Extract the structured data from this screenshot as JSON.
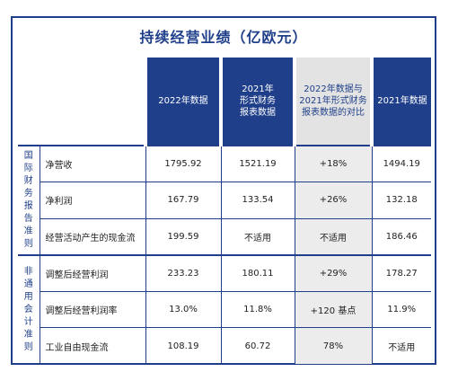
{
  "title": "持续经营业绩（亿欧元）",
  "headers": {
    "col1": [
      "2022年数据"
    ],
    "col2": [
      "2021年",
      "形式财务",
      "报表数据"
    ],
    "col3": [
      "2022年数据与",
      "2021年形式财务",
      "报表数据的对比"
    ],
    "col4": [
      "2021年数据"
    ]
  },
  "groups": [
    {
      "label": [
        "国",
        "际",
        "财",
        "务",
        "报",
        "告",
        "准",
        "则"
      ],
      "rows": [
        {
          "metric": "净营收",
          "v2022": "1795.92",
          "pf2021": "1521.19",
          "cmp": "+18%",
          "v2021": "1494.19"
        },
        {
          "metric": "净利润",
          "v2022": "167.79",
          "pf2021": "133.54",
          "cmp": "+26%",
          "v2021": "132.18"
        },
        {
          "metric": "经营活动产生的现金流",
          "v2022": "199.59",
          "pf2021": "不适用",
          "cmp": "不适用",
          "v2021": "186.46"
        }
      ]
    },
    {
      "label": [
        "非",
        "通",
        "用",
        "会",
        "计",
        "准",
        "则"
      ],
      "rows": [
        {
          "metric": "调整后经营利润",
          "v2022": "233.23",
          "pf2021": "180.11",
          "cmp": "+29%",
          "v2021": "178.27"
        },
        {
          "metric": "调整后经营利润率",
          "v2022": "13.0%",
          "pf2021": "11.8%",
          "cmp": "+120  基点",
          "v2021": "11.9%"
        },
        {
          "metric": "工业自由现金流",
          "v2022": "108.19",
          "pf2021": "60.72",
          "cmp": "78%",
          "v2021": "不适用"
        }
      ]
    }
  ]
}
